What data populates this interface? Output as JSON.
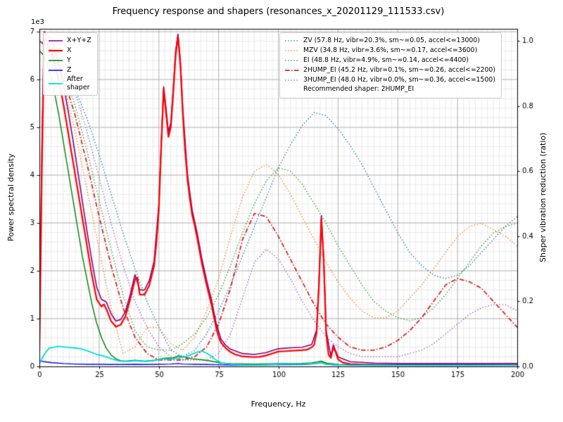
{
  "title": "Frequency response and shapers (resonances_x_20201129_111533.csv)",
  "axes": {
    "x_label": "Frequency, Hz",
    "y_left_label": "Power spectral density",
    "y_right_label": "Shaper vibration reduction (ratio)",
    "y_left_offset_text": "1e3",
    "x_ticks": [
      0,
      25,
      50,
      75,
      100,
      125,
      150,
      175,
      200
    ],
    "y_left_ticks": [
      0,
      1,
      2,
      3,
      4,
      5,
      6,
      7
    ],
    "y_right_ticks": [
      "0.0",
      "0.2",
      "0.4",
      "0.6",
      "0.8",
      "1.0"
    ]
  },
  "chart_data": {
    "type": "line",
    "x_range": [
      0,
      200
    ],
    "y_left_range": [
      0,
      7.06
    ],
    "y_right_range": [
      0,
      1.037
    ],
    "y_left_unit": "1e3",
    "x_minor_step": 2.5,
    "y_left_minor_step": 0.2,
    "grid": "major+minor",
    "recommended_shaper": "2HUMP_EI",
    "recommended_text": "Recommended shaper: 2HUMP_EI",
    "psd_series": [
      {
        "name": "X+Y+Z",
        "label": "X+Y+Z",
        "color": "#800080",
        "style": "solid",
        "width": 1.6,
        "axis": "left",
        "x": [
          0,
          1,
          2,
          4,
          6,
          8,
          10,
          12,
          14,
          16,
          18,
          20,
          22,
          24,
          26,
          28,
          30,
          32,
          34,
          36,
          38,
          40,
          42,
          44,
          46,
          48,
          50,
          51,
          52,
          53,
          54,
          55,
          56,
          57,
          58,
          59,
          60,
          62,
          64,
          66,
          68,
          70,
          72,
          74,
          76,
          78,
          80,
          85,
          90,
          95,
          100,
          105,
          110,
          114,
          116,
          117,
          118,
          119,
          120,
          122,
          123,
          125,
          130,
          140,
          150,
          160,
          180,
          200
        ],
        "y": [
          0.4,
          4.5,
          7.0,
          6.9,
          6.7,
          6.35,
          5.9,
          5.35,
          4.75,
          4.1,
          3.45,
          2.8,
          2.2,
          1.65,
          1.4,
          1.35,
          1.1,
          0.95,
          0.98,
          1.15,
          1.5,
          1.92,
          1.6,
          1.6,
          1.8,
          2.2,
          3.4,
          4.7,
          5.85,
          5.4,
          4.9,
          5.1,
          5.8,
          6.6,
          6.95,
          6.4,
          5.4,
          4.0,
          3.25,
          2.8,
          2.25,
          1.8,
          1.4,
          0.9,
          0.57,
          0.44,
          0.36,
          0.27,
          0.25,
          0.29,
          0.37,
          0.39,
          0.4,
          0.46,
          0.76,
          1.75,
          3.15,
          2.25,
          0.75,
          0.22,
          0.45,
          0.2,
          0.1,
          0.07,
          0.06,
          0.06,
          0.06,
          0.06
        ]
      },
      {
        "name": "X",
        "label": "X",
        "color": "#ff0000",
        "style": "solid",
        "width": 2.2,
        "axis": "left",
        "x": [
          0,
          1,
          2,
          4,
          6,
          8,
          10,
          12,
          14,
          16,
          18,
          20,
          22,
          24,
          26,
          27,
          28,
          30,
          32,
          34,
          36,
          38,
          40,
          41,
          42,
          44,
          46,
          48,
          49,
          50,
          51,
          52,
          53,
          54,
          55,
          56,
          57,
          58,
          59,
          60,
          61,
          62,
          63,
          64,
          65,
          66,
          68,
          70,
          72,
          74,
          75,
          76,
          78,
          80,
          82,
          85,
          88,
          90,
          92,
          95,
          98,
          100,
          103,
          106,
          110,
          112,
          114,
          115,
          116,
          117,
          118,
          119,
          120,
          121,
          122,
          123,
          124,
          125,
          127,
          130,
          135,
          140,
          150,
          160,
          170,
          180,
          190,
          200
        ],
        "y": [
          0.3,
          4.0,
          6.9,
          6.7,
          6.4,
          6.0,
          5.5,
          4.9,
          4.3,
          3.7,
          3.1,
          2.5,
          1.9,
          1.4,
          1.25,
          1.3,
          1.2,
          0.95,
          0.83,
          0.87,
          1.05,
          1.4,
          1.82,
          1.86,
          1.5,
          1.5,
          1.7,
          2.1,
          2.6,
          3.3,
          4.6,
          5.8,
          5.3,
          4.8,
          5.0,
          5.7,
          6.5,
          6.9,
          6.3,
          5.3,
          4.5,
          3.9,
          3.5,
          3.15,
          2.95,
          2.7,
          2.15,
          1.7,
          1.3,
          0.8,
          0.62,
          0.5,
          0.38,
          0.3,
          0.25,
          0.21,
          0.2,
          0.195,
          0.2,
          0.23,
          0.28,
          0.31,
          0.32,
          0.33,
          0.34,
          0.35,
          0.4,
          0.45,
          0.7,
          1.7,
          3.08,
          2.2,
          0.7,
          0.25,
          0.18,
          0.4,
          0.3,
          0.15,
          0.08,
          0.05,
          0.04,
          0.035,
          0.03,
          0.03,
          0.03,
          0.03,
          0.03,
          0.03
        ]
      },
      {
        "name": "Y",
        "label": "Y",
        "color": "#008000",
        "style": "solid",
        "width": 1.4,
        "axis": "left",
        "x": [
          0,
          2,
          4,
          6,
          8,
          10,
          12,
          14,
          16,
          18,
          20,
          22,
          24,
          26,
          28,
          30,
          32,
          34,
          36,
          40,
          44,
          48,
          52,
          56,
          58,
          60,
          64,
          68,
          72,
          76,
          80,
          90,
          100,
          110,
          114,
          118,
          120,
          125,
          130,
          140,
          160,
          180,
          200
        ],
        "y": [
          6.6,
          6.5,
          6.2,
          5.8,
          5.3,
          4.7,
          4.1,
          3.5,
          2.9,
          2.3,
          1.8,
          1.3,
          0.9,
          0.6,
          0.38,
          0.24,
          0.16,
          0.12,
          0.11,
          0.13,
          0.11,
          0.13,
          0.17,
          0.18,
          0.22,
          0.2,
          0.16,
          0.14,
          0.11,
          0.07,
          0.06,
          0.05,
          0.06,
          0.065,
          0.075,
          0.11,
          0.07,
          0.04,
          0.035,
          0.03,
          0.03,
          0.03,
          0.03
        ]
      },
      {
        "name": "Z",
        "label": "Z",
        "color": "#0000ff",
        "style": "solid",
        "width": 1.4,
        "axis": "left",
        "x": [
          0,
          2,
          5,
          10,
          15,
          20,
          25,
          30,
          35,
          40,
          45,
          50,
          55,
          58,
          60,
          65,
          70,
          75,
          80,
          90,
          100,
          110,
          114,
          116,
          118,
          120,
          125,
          140,
          160,
          180,
          200
        ],
        "y": [
          0.12,
          0.1,
          0.08,
          0.06,
          0.05,
          0.045,
          0.045,
          0.04,
          0.04,
          0.045,
          0.04,
          0.045,
          0.05,
          0.06,
          0.05,
          0.045,
          0.04,
          0.035,
          0.03,
          0.03,
          0.035,
          0.04,
          0.05,
          0.06,
          0.08,
          0.045,
          0.03,
          0.025,
          0.025,
          0.025,
          0.025
        ]
      },
      {
        "name": "After shaper",
        "label": "After\nshaper",
        "color": "#00dede",
        "style": "solid",
        "width": 1.8,
        "axis": "left",
        "x": [
          0,
          2,
          4,
          6,
          8,
          10,
          12,
          14,
          16,
          18,
          20,
          22,
          24,
          26,
          28,
          30,
          32,
          34,
          36,
          38,
          40,
          44,
          48,
          50,
          52,
          54,
          56,
          58,
          60,
          62,
          64,
          66,
          68,
          70,
          72,
          74,
          76,
          80,
          85,
          90,
          95,
          100,
          105,
          110,
          114,
          116,
          118,
          120,
          125,
          130,
          140,
          150,
          160,
          180,
          200
        ],
        "y": [
          0.06,
          0.25,
          0.38,
          0.4,
          0.42,
          0.41,
          0.4,
          0.39,
          0.38,
          0.36,
          0.33,
          0.29,
          0.25,
          0.23,
          0.2,
          0.16,
          0.13,
          0.11,
          0.105,
          0.11,
          0.12,
          0.105,
          0.12,
          0.14,
          0.16,
          0.15,
          0.16,
          0.18,
          0.19,
          0.22,
          0.26,
          0.3,
          0.32,
          0.28,
          0.21,
          0.13,
          0.08,
          0.045,
          0.035,
          0.03,
          0.035,
          0.045,
          0.05,
          0.05,
          0.055,
          0.065,
          0.075,
          0.045,
          0.03,
          0.025,
          0.02,
          0.02,
          0.02,
          0.02,
          0.025
        ]
      }
    ],
    "shaper_x": [
      0,
      5,
      10,
      15,
      20,
      25,
      30,
      35,
      40,
      45,
      50,
      55,
      60,
      65,
      70,
      75,
      80,
      85,
      90,
      95,
      100,
      105,
      110,
      115,
      120,
      125,
      130,
      135,
      140,
      145,
      150,
      155,
      160,
      165,
      170,
      175,
      180,
      185,
      190,
      195,
      200
    ],
    "shaper_series": [
      {
        "name": "ZV",
        "label": "ZV (57.8 Hz, vibr=20.3%, sm~=0.05, accel<=13000)",
        "color": "#1f77b4",
        "style": "dotted",
        "width": 1.3,
        "axis": "right",
        "y": [
          1.0,
          0.98,
          0.93,
          0.85,
          0.76,
          0.65,
          0.53,
          0.41,
          0.3,
          0.2,
          0.12,
          0.05,
          0.03,
          0.05,
          0.1,
          0.17,
          0.25,
          0.34,
          0.43,
          0.52,
          0.61,
          0.68,
          0.74,
          0.78,
          0.77,
          0.73,
          0.68,
          0.62,
          0.55,
          0.48,
          0.41,
          0.35,
          0.31,
          0.28,
          0.27,
          0.28,
          0.31,
          0.35,
          0.39,
          0.43,
          0.46
        ]
      },
      {
        "name": "MZV",
        "label": "MZV (34.8 Hz, vibr=3.6%, sm~=0.17, accel<=3600)",
        "color": "#ff7f0e",
        "style": "dotted",
        "width": 1.3,
        "axis": "right",
        "y": [
          1.0,
          0.97,
          0.87,
          0.72,
          0.54,
          0.36,
          0.18,
          0.04,
          0.06,
          0.12,
          0.12,
          0.07,
          0.05,
          0.09,
          0.17,
          0.27,
          0.4,
          0.52,
          0.6,
          0.62,
          0.59,
          0.53,
          0.46,
          0.39,
          0.32,
          0.26,
          0.21,
          0.17,
          0.15,
          0.15,
          0.17,
          0.21,
          0.25,
          0.3,
          0.35,
          0.4,
          0.43,
          0.44,
          0.42,
          0.4,
          0.37
        ]
      },
      {
        "name": "EI",
        "label": "EI (48.8 Hz, vibr=4.9%, sm~=0.14, accel<=4400)",
        "color": "#2ca02c",
        "style": "dotted",
        "width": 1.3,
        "axis": "right",
        "y": [
          1.0,
          0.98,
          0.91,
          0.8,
          0.66,
          0.51,
          0.36,
          0.22,
          0.11,
          0.06,
          0.05,
          0.05,
          0.07,
          0.1,
          0.15,
          0.22,
          0.31,
          0.41,
          0.5,
          0.57,
          0.61,
          0.6,
          0.56,
          0.5,
          0.44,
          0.37,
          0.31,
          0.25,
          0.2,
          0.17,
          0.15,
          0.14,
          0.15,
          0.18,
          0.22,
          0.27,
          0.32,
          0.37,
          0.41,
          0.43,
          0.44
        ]
      },
      {
        "name": "2HUMP_EI",
        "label": "2HUMP_EI (45.2 Hz, vibr=0.1%, sm~=0.26, accel<=2200)",
        "color": "#d62728",
        "style": "dashdot",
        "width": 1.8,
        "axis": "right",
        "y": [
          1.0,
          0.97,
          0.89,
          0.77,
          0.62,
          0.46,
          0.31,
          0.18,
          0.09,
          0.04,
          0.02,
          0.02,
          0.02,
          0.03,
          0.06,
          0.13,
          0.24,
          0.39,
          0.47,
          0.46,
          0.4,
          0.33,
          0.26,
          0.19,
          0.13,
          0.09,
          0.06,
          0.05,
          0.05,
          0.06,
          0.08,
          0.11,
          0.15,
          0.2,
          0.25,
          0.27,
          0.26,
          0.24,
          0.2,
          0.16,
          0.12
        ]
      },
      {
        "name": "3HUMP_EI",
        "label": "3HUMP_EI (48.0 Hz, vibr=0.0%, sm~=0.36, accel<=1500)",
        "color": "#9467bd",
        "style": "dotted",
        "width": 1.3,
        "axis": "right",
        "y": [
          1.0,
          0.98,
          0.93,
          0.84,
          0.72,
          0.58,
          0.44,
          0.31,
          0.2,
          0.12,
          0.06,
          0.03,
          0.02,
          0.02,
          0.02,
          0.04,
          0.1,
          0.21,
          0.32,
          0.36,
          0.33,
          0.27,
          0.2,
          0.14,
          0.09,
          0.06,
          0.04,
          0.03,
          0.03,
          0.03,
          0.03,
          0.04,
          0.05,
          0.07,
          0.1,
          0.13,
          0.16,
          0.18,
          0.19,
          0.19,
          0.17
        ]
      }
    ]
  }
}
